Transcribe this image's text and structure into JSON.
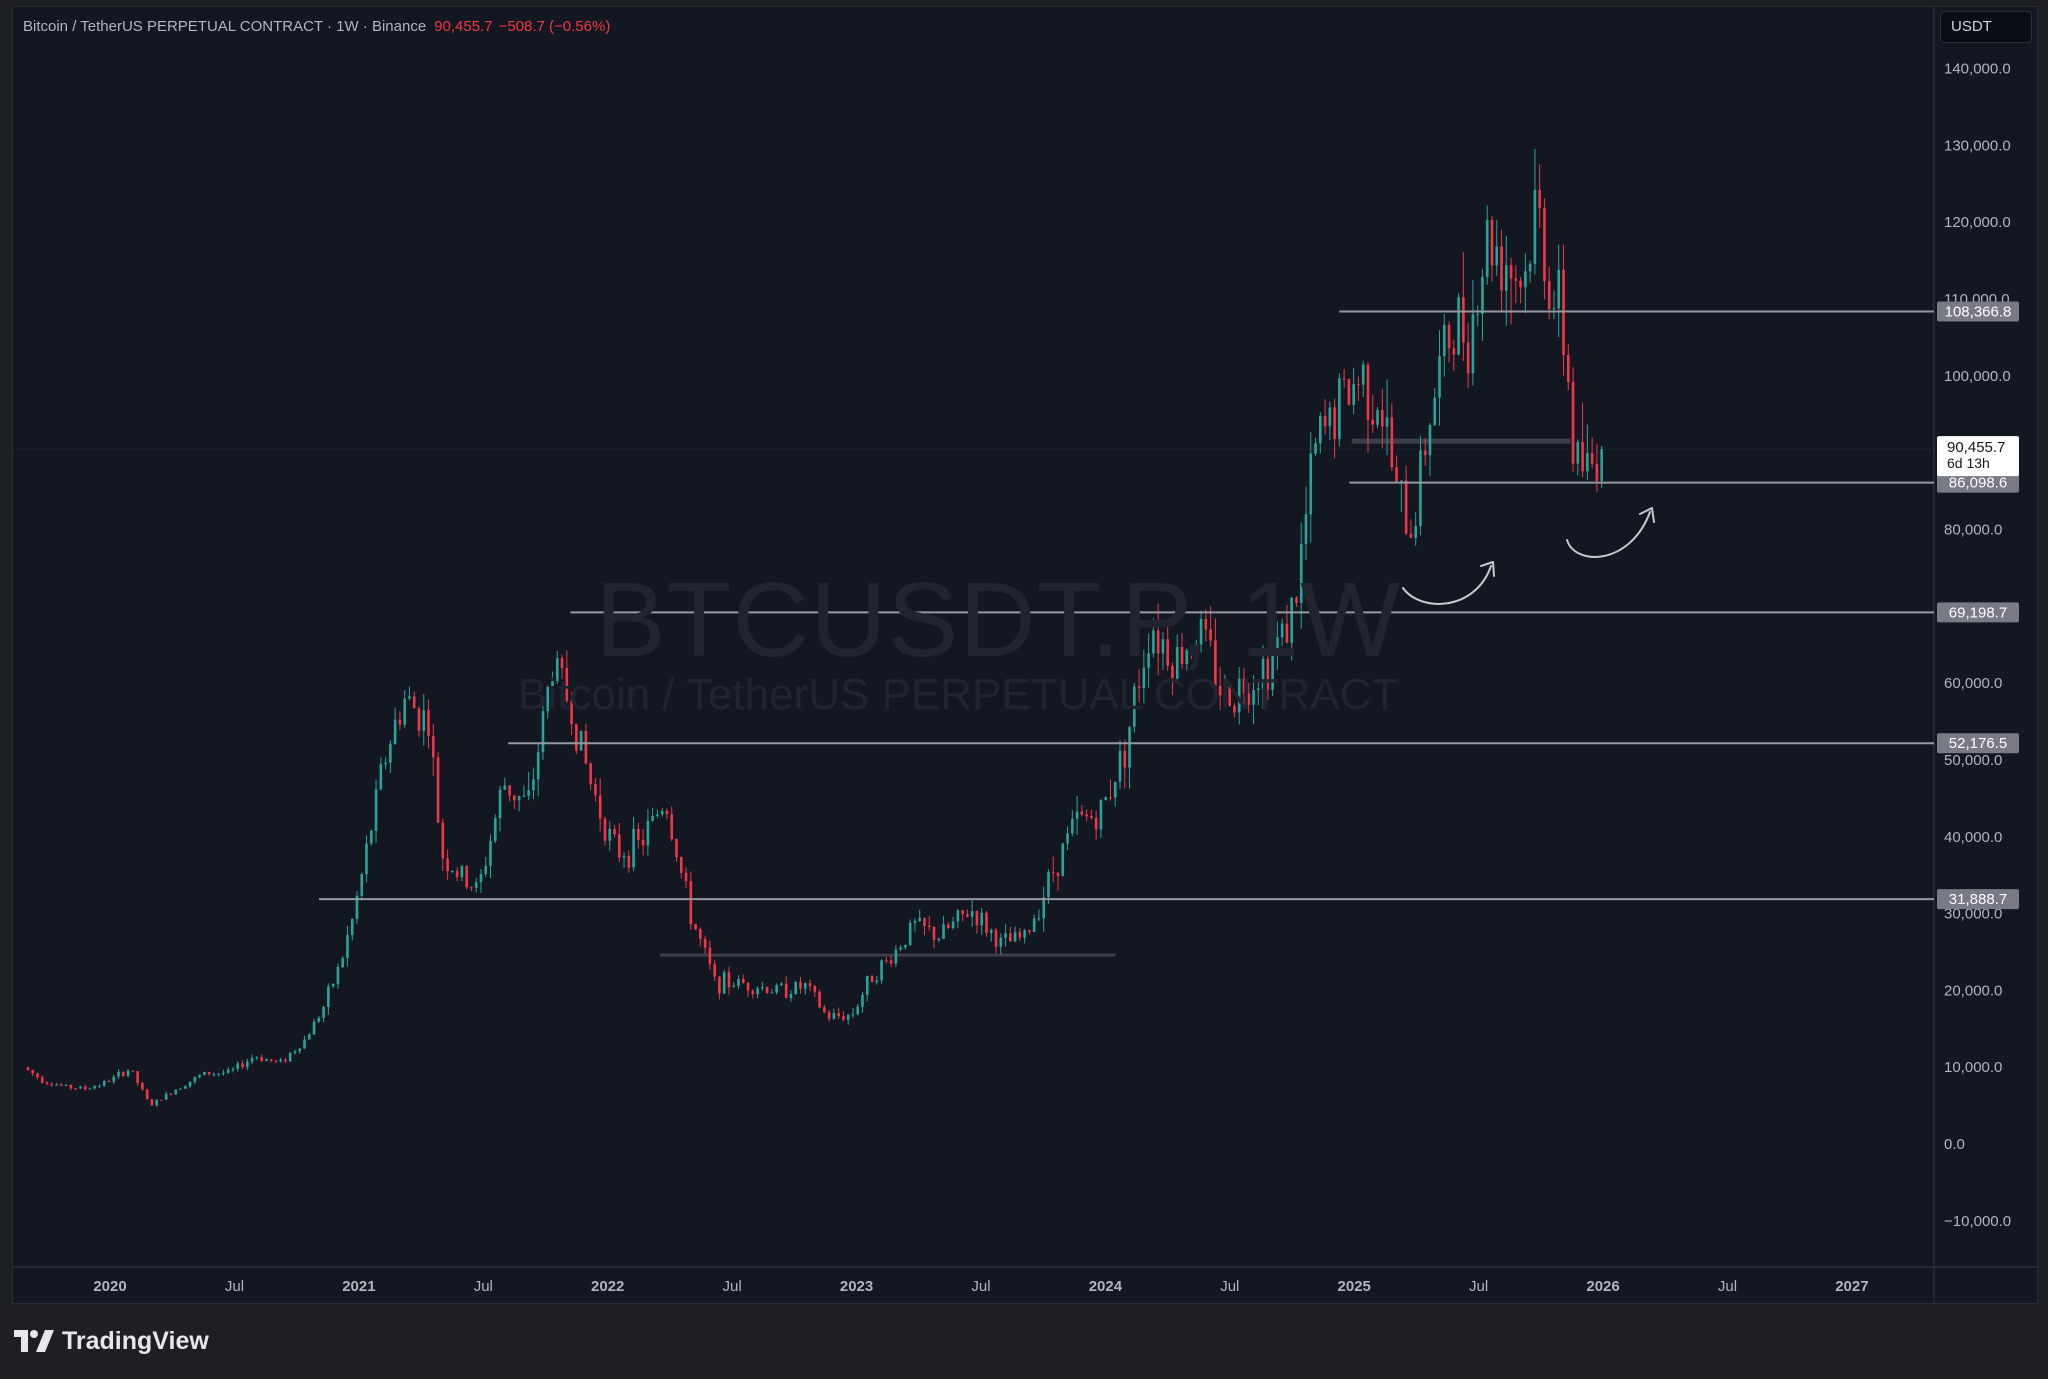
{
  "header": {
    "title": "Bitcoin / TetherUS PERPETUAL CONTRACT · 1W · Binance",
    "price": "90,455.7",
    "change": "−508.7 (−0.56%)"
  },
  "currency_button": "USDT",
  "watermark": {
    "symbol": "BTCUSDT.P, 1W",
    "description": "Bitcoin / TetherUS PERPETUAL CONTRACT"
  },
  "brand": "TradingView",
  "colors": {
    "up": "#26a69a",
    "down": "#f23645",
    "background": "#131722",
    "levels": "#9598a1"
  },
  "chart_data": {
    "type": "candlestick",
    "x_axis_labels": [
      "2020",
      "Jul",
      "2021",
      "Jul",
      "2022",
      "Jul",
      "2023",
      "Jul",
      "2024",
      "Jul",
      "2025",
      "Jul",
      "2026",
      "Jul",
      "2027"
    ],
    "x_axis_values": [
      2020.0,
      2020.5,
      2021.0,
      2021.5,
      2022.0,
      2022.5,
      2023.0,
      2023.5,
      2024.0,
      2024.5,
      2025.0,
      2025.5,
      2026.0,
      2026.5,
      2027.0
    ],
    "xlim": [
      2019.61,
      2027.33
    ],
    "ylim": [
      -16000,
      148000
    ],
    "y_ticks": [
      -10000,
      0,
      10000,
      20000,
      30000,
      40000,
      50000,
      60000,
      80000,
      100000,
      110000,
      120000,
      130000,
      140000
    ],
    "y_tick_labels": [
      "−10,000.0",
      "0.0",
      "10,000.0",
      "20,000.0",
      "30,000.0",
      "40,000.0",
      "50,000.0",
      "60,000.0",
      "80,000.0",
      "100,000.0",
      "110,000.0",
      "120,000.0",
      "130,000.0",
      "140,000.0"
    ],
    "price_path": [
      [
        2019.67,
        10000
      ],
      [
        2019.75,
        8300
      ],
      [
        2019.83,
        7500
      ],
      [
        2019.92,
        7200
      ],
      [
        2020.0,
        8000
      ],
      [
        2020.1,
        9800
      ],
      [
        2020.18,
        5000
      ],
      [
        2020.3,
        7500
      ],
      [
        2020.4,
        9200
      ],
      [
        2020.5,
        9300
      ],
      [
        2020.6,
        11500
      ],
      [
        2020.7,
        10500
      ],
      [
        2020.8,
        13500
      ],
      [
        2020.88,
        18000
      ],
      [
        2020.95,
        24000
      ],
      [
        2021.0,
        30000
      ],
      [
        2021.05,
        38000
      ],
      [
        2021.12,
        50000
      ],
      [
        2021.2,
        58000
      ],
      [
        2021.3,
        55000
      ],
      [
        2021.35,
        38000
      ],
      [
        2021.42,
        35000
      ],
      [
        2021.5,
        33000
      ],
      [
        2021.6,
        47000
      ],
      [
        2021.7,
        44000
      ],
      [
        2021.8,
        63000
      ],
      [
        2021.87,
        57000
      ],
      [
        2021.95,
        47000
      ],
      [
        2022.05,
        38000
      ],
      [
        2022.15,
        39000
      ],
      [
        2022.25,
        45000
      ],
      [
        2022.35,
        30000
      ],
      [
        2022.45,
        21000
      ],
      [
        2022.55,
        21000
      ],
      [
        2022.7,
        20000
      ],
      [
        2022.82,
        20500
      ],
      [
        2022.9,
        16500
      ],
      [
        2023.0,
        16800
      ],
      [
        2023.08,
        22000
      ],
      [
        2023.15,
        24000
      ],
      [
        2023.25,
        28500
      ],
      [
        2023.35,
        27000
      ],
      [
        2023.48,
        30500
      ],
      [
        2023.6,
        26000
      ],
      [
        2023.7,
        27000
      ],
      [
        2023.8,
        35000
      ],
      [
        2023.9,
        42000
      ],
      [
        2024.0,
        43000
      ],
      [
        2024.1,
        52000
      ],
      [
        2024.2,
        68000
      ],
      [
        2024.3,
        63000
      ],
      [
        2024.4,
        67000
      ],
      [
        2024.5,
        58000
      ],
      [
        2024.58,
        60000
      ],
      [
        2024.68,
        63000
      ],
      [
        2024.78,
        70000
      ],
      [
        2024.86,
        90000
      ],
      [
        2024.95,
        96000
      ],
      [
        2025.05,
        100000
      ],
      [
        2025.12,
        97000
      ],
      [
        2025.2,
        83000
      ],
      [
        2025.25,
        80000
      ],
      [
        2025.32,
        95000
      ],
      [
        2025.4,
        105000
      ],
      [
        2025.5,
        108000
      ],
      [
        2025.55,
        118000
      ],
      [
        2025.62,
        116000
      ],
      [
        2025.7,
        112000
      ],
      [
        2025.75,
        122000
      ],
      [
        2025.82,
        110000
      ],
      [
        2025.87,
        104000
      ],
      [
        2025.9,
        90000
      ],
      [
        2025.96,
        87000
      ],
      [
        2026.0,
        90456
      ]
    ],
    "levels": [
      {
        "value": 108366.8,
        "label": "108,366.8",
        "from": 2024.94
      },
      {
        "value": 86098.6,
        "label": "86,098.6",
        "from": 2024.98
      },
      {
        "value": 69198.7,
        "label": "69,198.7",
        "from": 2021.85
      },
      {
        "value": 52176.5,
        "label": "52,176.5",
        "from": 2021.6
      },
      {
        "value": 31888.7,
        "label": "31,888.7",
        "from": 2020.84
      }
    ],
    "current_price": {
      "value": 90455.7,
      "label": "90,455.7",
      "countdown": "6d 13h"
    }
  }
}
